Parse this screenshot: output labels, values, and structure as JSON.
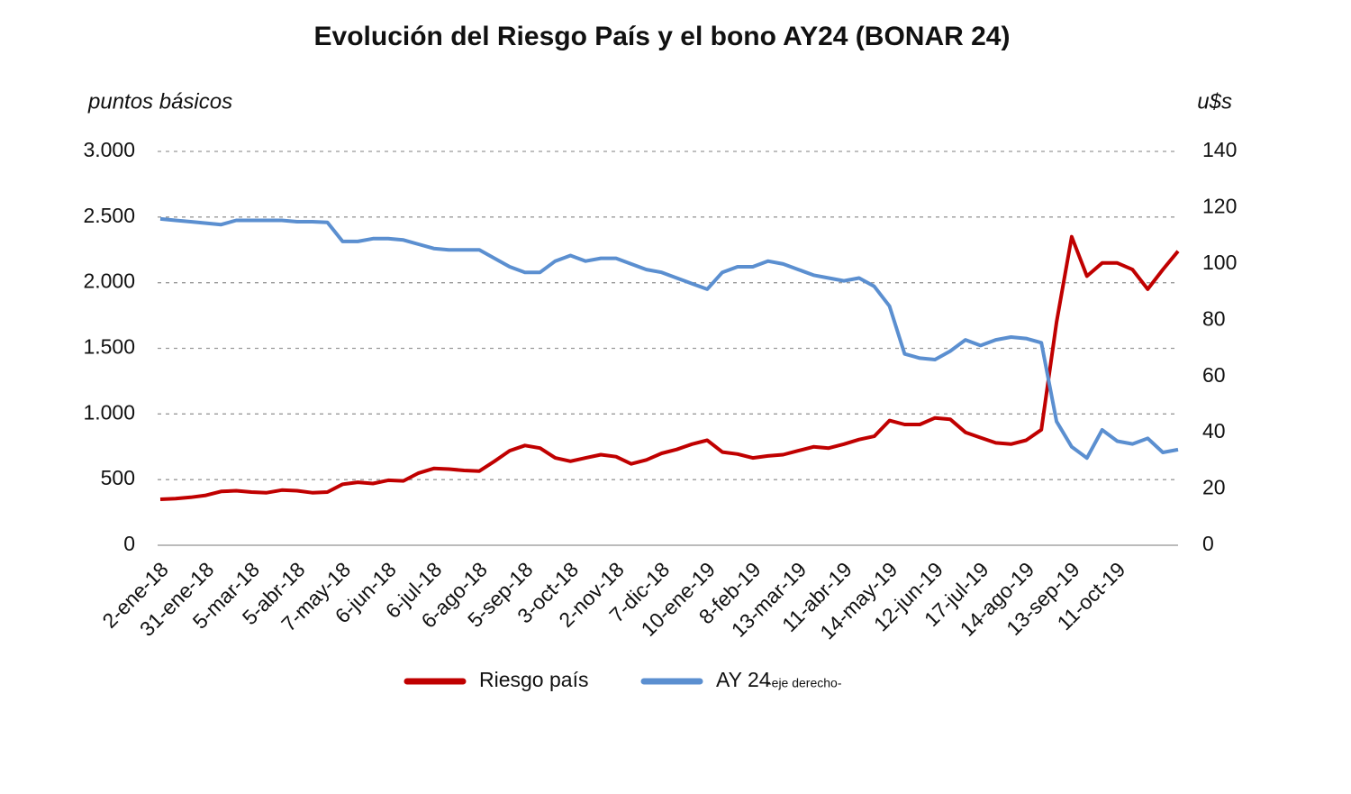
{
  "chart_data": {
    "type": "line",
    "title": "Evolución del Riesgo País y el bono AY24 (BONAR 24)",
    "y_label": "puntos básicos",
    "y2_label": "u$s",
    "categories": [
      "2-ene-18",
      null,
      null,
      "31-ene-18",
      null,
      null,
      "5-mar-18",
      null,
      null,
      "5-abr-18",
      null,
      null,
      "7-may-18",
      null,
      null,
      "6-jun-18",
      null,
      null,
      "6-jul-18",
      null,
      null,
      "6-ago-18",
      null,
      null,
      "5-sep-18",
      null,
      null,
      "3-oct-18",
      null,
      null,
      "2-nov-18",
      null,
      null,
      "7-dic-18",
      null,
      null,
      "10-ene-19",
      null,
      null,
      "8-feb-19",
      null,
      null,
      "13-mar-19",
      null,
      null,
      "11-abr-19",
      null,
      null,
      "14-may-19",
      null,
      null,
      "12-jun-19",
      null,
      null,
      "17-jul-19",
      null,
      null,
      "14-ago-19",
      null,
      null,
      "13-sep-19",
      null,
      null,
      "11-oct-19",
      null,
      null,
      null,
      null
    ],
    "series": [
      {
        "name": "Riesgo país",
        "color": "#c00000",
        "values": [
          350,
          355,
          365,
          380,
          410,
          415,
          405,
          400,
          420,
          415,
          400,
          405,
          465,
          480,
          470,
          495,
          490,
          550,
          585,
          580,
          570,
          565,
          640,
          720,
          760,
          740,
          665,
          640,
          665,
          690,
          675,
          620,
          650,
          700,
          730,
          770,
          800,
          710,
          695,
          665,
          680,
          690,
          720,
          750,
          740,
          770,
          805,
          830,
          950,
          920,
          920,
          970,
          960,
          860,
          820,
          780,
          770,
          800,
          880,
          1700,
          2350,
          2050,
          2150,
          2150,
          2100,
          1950,
          2100,
          2240
        ]
      },
      {
        "name": "AY 24",
        "color": "#5b8fd0",
        "axis": "y2",
        "values": [
          116,
          115.5,
          115,
          114.5,
          114,
          115.5,
          115.5,
          115.5,
          115.5,
          115,
          115,
          114.8,
          108,
          108,
          109,
          109,
          108.5,
          107,
          105.5,
          105,
          105,
          105,
          102,
          99,
          97,
          97,
          101,
          103,
          101,
          102,
          102,
          100,
          98,
          97,
          95,
          93,
          91,
          97,
          99,
          99,
          101,
          100,
          98,
          96,
          95,
          94,
          95,
          92,
          85,
          68,
          66.5,
          66,
          69,
          73,
          71,
          73,
          74,
          73.5,
          72,
          44,
          35,
          31,
          41,
          37,
          36,
          38,
          33,
          34
        ]
      }
    ],
    "legend_note": "-eje derecho-",
    "ylim": [
      0,
      3000
    ],
    "yticks": [
      0,
      500,
      {
        "value": 1000,
        "label": "1.000"
      },
      {
        "value": 1500,
        "label": "1.500"
      },
      {
        "value": 2000,
        "label": "2.000"
      },
      {
        "value": 2500,
        "label": "2.500"
      },
      {
        "value": 3000,
        "label": "3.000"
      }
    ],
    "y2lim": [
      0,
      140
    ],
    "y2ticks": [
      0,
      20,
      40,
      60,
      80,
      100,
      120,
      140
    ],
    "grid": true
  }
}
